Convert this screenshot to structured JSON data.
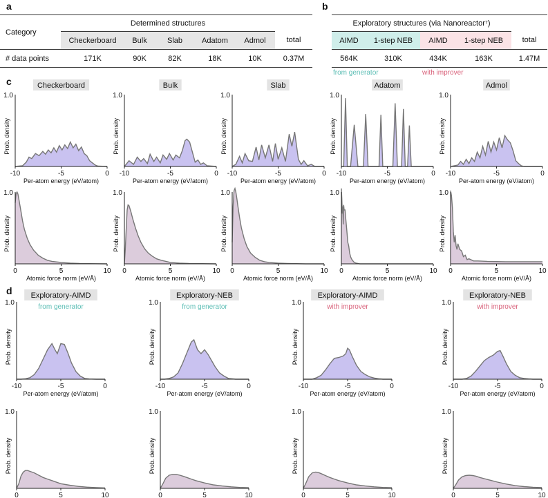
{
  "panels": {
    "a": "a",
    "b": "b",
    "c": "c",
    "d": "d"
  },
  "table_a": {
    "category_label": "Category",
    "group_title": "Determined structures",
    "columns": [
      "Checkerboard",
      "Bulk",
      "Slab",
      "Adatom",
      "Admol"
    ],
    "total_label": "total",
    "row_label": "# data points",
    "values": [
      "171K",
      "90K",
      "82K",
      "18K",
      "10K"
    ],
    "total": "0.37M"
  },
  "table_b": {
    "group_title": "Exploratory structures (via Nanoreactor⁷)",
    "columns": [
      "AIMD",
      "1-step NEB",
      "AIMD",
      "1-step NEB"
    ],
    "total_label": "total",
    "values": [
      "564K",
      "310K",
      "434K",
      "163K"
    ],
    "total": "1.47M",
    "from_generator": "from generator",
    "with_improver": "with improver"
  },
  "colors": {
    "energy_fill": "#c9c2f0",
    "force_fill": "#dcccdc",
    "line": "#777777",
    "teal": "#5bbdb4",
    "pink": "#d9627b"
  },
  "chart_data": [
    {
      "id": "c-energy-checkerboard",
      "type": "area",
      "title": "Checkerboard",
      "xlabel": "Per-atom energy (eV/atom)",
      "ylabel": "Prob. density",
      "xlim": [
        -10,
        0
      ],
      "ylim": [
        0,
        1
      ],
      "xticks": [
        "-10",
        "-5",
        "0"
      ],
      "ytick": "1.0",
      "x": [
        -10,
        -9.2,
        -8.8,
        -8.5,
        -8.2,
        -7.8,
        -7.4,
        -7,
        -6.7,
        -6.4,
        -6.1,
        -5.8,
        -5.5,
        -5.2,
        -4.9,
        -4.6,
        -4.3,
        -4,
        -3.7,
        -3.4,
        -3.1,
        -2.8,
        -2.5,
        -2.2,
        -1.9,
        -1.6,
        -1.3,
        -1,
        0
      ],
      "y": [
        0,
        0.01,
        0.06,
        0.13,
        0.11,
        0.18,
        0.15,
        0.21,
        0.17,
        0.23,
        0.19,
        0.26,
        0.2,
        0.29,
        0.23,
        0.3,
        0.25,
        0.34,
        0.26,
        0.31,
        0.22,
        0.27,
        0.18,
        0.15,
        0.08,
        0.05,
        0.02,
        0.005,
        0
      ]
    },
    {
      "id": "c-energy-bulk",
      "type": "area",
      "title": "Bulk",
      "xlabel": "Per-atom energy (eV/atom)",
      "ylabel": "Prob. density",
      "xlim": [
        -10,
        0
      ],
      "ylim": [
        0,
        1
      ],
      "xticks": [
        "-10",
        "-5",
        "0"
      ],
      "ytick": "1.0",
      "x": [
        -10,
        -9.5,
        -9,
        -8.6,
        -8.2,
        -7.9,
        -7.5,
        -7.2,
        -6.8,
        -6.5,
        -6.1,
        -5.8,
        -5.4,
        -5.1,
        -4.7,
        -4.4,
        -4,
        -3.7,
        -3.4,
        -3.2,
        -2.9,
        -2.6,
        -2.3,
        -2,
        -1.7,
        -1.4,
        -1,
        0
      ],
      "y": [
        0,
        0.08,
        0.03,
        0.13,
        0.07,
        0.11,
        0.04,
        0.17,
        0.07,
        0.13,
        0.05,
        0.16,
        0.1,
        0.18,
        0.09,
        0.16,
        0.12,
        0.22,
        0.36,
        0.38,
        0.34,
        0.2,
        0.06,
        0.09,
        0.03,
        0.05,
        0.01,
        0
      ]
    },
    {
      "id": "c-energy-slab",
      "type": "area",
      "title": "Slab",
      "xlabel": "Per-atom energy (eV/atom)",
      "ylabel": "Prob. density",
      "xlim": [
        -10,
        0
      ],
      "ylim": [
        0,
        1
      ],
      "xticks": [
        "-10",
        "-5",
        "0"
      ],
      "ytick": "1.0",
      "x": [
        -10,
        -9.6,
        -9.2,
        -8.9,
        -8.6,
        -8.2,
        -7.8,
        -7.4,
        -7.1,
        -6.8,
        -6.4,
        -6,
        -5.6,
        -5.3,
        -5,
        -4.6,
        -4.2,
        -3.8,
        -3.5,
        -3.2,
        -2.8,
        -2.5,
        -2.2,
        -1.8,
        -1.4,
        -1,
        0
      ],
      "y": [
        0,
        0.03,
        0.14,
        0.05,
        0.18,
        0.08,
        0.07,
        0.27,
        0.09,
        0.3,
        0.12,
        0.3,
        0.07,
        0.32,
        0.1,
        0.26,
        0.07,
        0.45,
        0.28,
        0.48,
        0.1,
        0.03,
        0.08,
        0.01,
        0.03,
        0,
        0
      ]
    },
    {
      "id": "c-energy-adatom",
      "type": "area",
      "title": "Adatom",
      "xlabel": "Per-atom energy (eV/atom)",
      "ylabel": "Prob. density",
      "xlim": [
        -10,
        0
      ],
      "ylim": [
        0,
        1
      ],
      "xticks": [
        "-10",
        "-5",
        "0"
      ],
      "ytick": "1.0",
      "x": [
        -10,
        -9.75,
        -9.55,
        -9.35,
        -9,
        -8.6,
        -8.2,
        -7.6,
        -7.35,
        -7.1,
        -6.4,
        -5.9,
        -5.7,
        -5.5,
        -5,
        -4.4,
        -4.15,
        -3.9,
        -3.45,
        -3.25,
        -3.05,
        -2.8,
        -2.6,
        -2.4,
        -2,
        0
      ],
      "y": [
        0,
        0,
        0.95,
        0,
        0,
        0.58,
        0,
        0,
        0.73,
        0,
        0,
        0,
        0.72,
        0,
        0,
        0,
        0.88,
        0,
        0,
        0.8,
        0,
        0,
        0.57,
        0,
        0,
        0
      ]
    },
    {
      "id": "c-energy-admol",
      "type": "area",
      "title": "Admol",
      "xlabel": "Per-atom energy (eV/atom)",
      "ylabel": "Prob. density",
      "xlim": [
        -10,
        0
      ],
      "ylim": [
        0,
        1
      ],
      "xticks": [
        "-10",
        "-5",
        "0"
      ],
      "ytick": "1.0",
      "x": [
        -10,
        -9.2,
        -8.9,
        -8.6,
        -8.3,
        -8,
        -7.7,
        -7.4,
        -7.1,
        -6.8,
        -6.5,
        -6.2,
        -5.9,
        -5.6,
        -5.3,
        -5,
        -4.7,
        -4.4,
        -4.1,
        -3.8,
        -3.5,
        -3.2,
        -2.9,
        -2.6,
        -2.3,
        -2,
        0
      ],
      "y": [
        0,
        0.02,
        0.07,
        0.03,
        0.1,
        0.04,
        0.12,
        0.07,
        0.2,
        0.12,
        0.28,
        0.16,
        0.35,
        0.2,
        0.34,
        0.23,
        0.4,
        0.26,
        0.43,
        0.37,
        0.33,
        0.22,
        0.08,
        0.04,
        0.01,
        0,
        0
      ]
    },
    {
      "id": "c-force-checkerboard",
      "type": "area",
      "xlabel": "Atomic force norm (eV/Å)",
      "ylabel": "Prob. density",
      "xlim": [
        0,
        10
      ],
      "ylim": [
        0,
        1
      ],
      "xticks": [
        "0",
        "5",
        "10"
      ],
      "ytick": "1.0",
      "x": [
        0,
        0.1,
        0.2,
        0.3,
        0.4,
        0.6,
        0.8,
        1,
        1.3,
        1.6,
        2,
        2.5,
        3,
        3.5,
        4,
        5,
        6,
        7,
        8,
        10
      ],
      "y": [
        0.85,
        0.98,
        1.0,
        0.97,
        0.9,
        0.75,
        0.6,
        0.48,
        0.36,
        0.27,
        0.19,
        0.12,
        0.08,
        0.05,
        0.035,
        0.02,
        0.01,
        0.005,
        0.003,
        0
      ]
    },
    {
      "id": "c-force-bulk",
      "type": "area",
      "xlabel": "Atomic force norm (eV/Å)",
      "ylabel": "Prob. density",
      "xlim": [
        0,
        10
      ],
      "ylim": [
        0,
        1
      ],
      "xticks": [
        "0",
        "5",
        "10"
      ],
      "ytick": "1.0",
      "x": [
        0,
        0.1,
        0.2,
        0.3,
        0.4,
        0.5,
        0.7,
        0.9,
        1.2,
        1.5,
        1.8,
        2.2,
        2.6,
        3,
        3.5,
        4,
        5,
        6,
        7,
        10
      ],
      "y": [
        0,
        0.2,
        0.5,
        0.75,
        0.82,
        0.81,
        0.73,
        0.63,
        0.5,
        0.39,
        0.3,
        0.21,
        0.15,
        0.11,
        0.07,
        0.05,
        0.02,
        0.01,
        0.005,
        0
      ]
    },
    {
      "id": "c-force-slab",
      "type": "area",
      "xlabel": "Atomic force norm (eV/Å)",
      "ylabel": "Prob. density",
      "xlim": [
        0,
        10
      ],
      "ylim": [
        0,
        1
      ],
      "xticks": [
        "0",
        "5",
        "10"
      ],
      "ytick": "1.0",
      "x": [
        0,
        0.1,
        0.2,
        0.3,
        0.4,
        0.5,
        0.6,
        0.8,
        1,
        1.3,
        1.6,
        2,
        2.5,
        3,
        3.5,
        4,
        5,
        6,
        8,
        10
      ],
      "y": [
        0.3,
        0.8,
        1.02,
        1.05,
        1.0,
        0.92,
        0.82,
        0.65,
        0.5,
        0.35,
        0.24,
        0.15,
        0.09,
        0.05,
        0.03,
        0.02,
        0.01,
        0.005,
        0,
        0
      ]
    },
    {
      "id": "c-force-adatom",
      "type": "area",
      "xlabel": "Atomic force norm (eV/Å)",
      "ylabel": "Prob. density",
      "xlim": [
        0,
        10
      ],
      "ylim": [
        0,
        1
      ],
      "xticks": [
        "0",
        "5",
        "10"
      ],
      "ytick": "1.0",
      "x": [
        0,
        0.05,
        0.1,
        0.15,
        0.2,
        0.25,
        0.3,
        0.4,
        0.5,
        0.6,
        0.7,
        0.8,
        0.9,
        1,
        1.1,
        1.2,
        1.4,
        1.6,
        2,
        10
      ],
      "y": [
        1.05,
        0.9,
        0.7,
        0.8,
        0.55,
        0.82,
        0.75,
        0.75,
        0.6,
        0.45,
        0.3,
        0.25,
        0.15,
        0.1,
        0.07,
        0.05,
        0.02,
        0.01,
        0,
        0
      ]
    },
    {
      "id": "c-force-admol",
      "type": "area",
      "xlabel": "Atomic force norm (eV/Å)",
      "ylabel": "Prob. density",
      "xlim": [
        0,
        10
      ],
      "ylim": [
        0,
        1
      ],
      "xticks": [
        "0",
        "5",
        "10"
      ],
      "ytick": "1.0",
      "x": [
        0,
        0.1,
        0.2,
        0.3,
        0.4,
        0.5,
        0.6,
        0.7,
        0.8,
        1,
        1.2,
        1.4,
        1.6,
        1.8,
        2,
        2.5,
        3,
        4,
        6,
        8,
        10
      ],
      "y": [
        1.02,
        0.95,
        0.78,
        0.45,
        0.3,
        0.4,
        0.25,
        0.2,
        0.28,
        0.2,
        0.18,
        0.1,
        0.12,
        0.06,
        0.07,
        0.04,
        0.04,
        0.035,
        0.03,
        0.03,
        0.03
      ]
    },
    {
      "id": "d-energy-aimd-gen",
      "type": "area",
      "title": "Exploratory-AIMD",
      "subtitle": "from generator",
      "xlabel": "Per-atom energy (eV/atom)",
      "ylabel": "Prob. density",
      "xlim": [
        -10,
        0
      ],
      "ylim": [
        0,
        1
      ],
      "xticks": [
        "-10",
        "-5",
        "0"
      ],
      "ytick": "1.0",
      "x": [
        -10,
        -9.5,
        -9,
        -8.5,
        -8,
        -7.5,
        -7,
        -6.5,
        -6,
        -5.7,
        -5.4,
        -5,
        -4.6,
        -4.2,
        -3.8,
        -3.3,
        -2.8,
        -2.3,
        -1.8,
        -1,
        0
      ],
      "y": [
        0,
        0,
        0.005,
        0.02,
        0.06,
        0.14,
        0.26,
        0.38,
        0.46,
        0.39,
        0.33,
        0.46,
        0.45,
        0.34,
        0.21,
        0.1,
        0.04,
        0.01,
        0.003,
        0,
        0
      ]
    },
    {
      "id": "d-energy-neb-gen",
      "type": "area",
      "title": "Exploratory-NEB",
      "subtitle": "from generator",
      "xlabel": "Per-atom energy (eV/atom)",
      "ylabel": "Prob. density",
      "xlim": [
        -10,
        0
      ],
      "ylim": [
        0,
        1
      ],
      "xticks": [
        "-10",
        "-5",
        "0"
      ],
      "ytick": "1.0",
      "x": [
        -10,
        -9.5,
        -9,
        -8.5,
        -8,
        -7.5,
        -7,
        -6.5,
        -6.2,
        -5.8,
        -5.4,
        -5,
        -4.6,
        -4.2,
        -3.8,
        -3.3,
        -2.8,
        -2.3,
        -1.5,
        0
      ],
      "y": [
        0,
        0,
        0.01,
        0.03,
        0.08,
        0.2,
        0.34,
        0.48,
        0.51,
        0.38,
        0.33,
        0.38,
        0.32,
        0.24,
        0.16,
        0.08,
        0.04,
        0.01,
        0,
        0
      ]
    },
    {
      "id": "d-energy-aimd-imp",
      "type": "area",
      "title": "Exploratory-AIMD",
      "subtitle": "with improver",
      "xlabel": "Per-atom energy (eV/atom)",
      "ylabel": "Prob. density",
      "xlim": [
        -10,
        0
      ],
      "ylim": [
        0,
        1
      ],
      "xticks": [
        "-10",
        "-5",
        "0"
      ],
      "ytick": "1.0",
      "x": [
        -10,
        -9,
        -8.5,
        -8,
        -7.5,
        -7,
        -6.5,
        -6,
        -5.5,
        -5.2,
        -5,
        -4.8,
        -4.5,
        -4,
        -3.5,
        -3,
        -2.5,
        -2,
        -1.5,
        -1,
        0
      ],
      "y": [
        0,
        0,
        0.02,
        0.05,
        0.12,
        0.2,
        0.27,
        0.28,
        0.3,
        0.33,
        0.4,
        0.38,
        0.3,
        0.18,
        0.1,
        0.06,
        0.03,
        0.015,
        0.005,
        0,
        0
      ]
    },
    {
      "id": "d-energy-neb-imp",
      "type": "area",
      "title": "Exploratory-NEB",
      "subtitle": "with improver",
      "xlabel": "Per-atom energy (eV/atom)",
      "ylabel": "Prob. density",
      "xlim": [
        -10,
        0
      ],
      "ylim": [
        0,
        1
      ],
      "xticks": [
        "-10",
        "-5",
        "0"
      ],
      "ytick": "1.0",
      "x": [
        -10,
        -9,
        -8.5,
        -8,
        -7.5,
        -7,
        -6.5,
        -6,
        -5.5,
        -5,
        -4.7,
        -4.4,
        -4,
        -3.5,
        -3,
        -2.5,
        -2,
        -1.5,
        -1,
        0
      ],
      "y": [
        0,
        0,
        0.01,
        0.04,
        0.1,
        0.17,
        0.24,
        0.28,
        0.31,
        0.36,
        0.37,
        0.3,
        0.2,
        0.1,
        0.05,
        0.02,
        0.01,
        0.004,
        0,
        0
      ]
    },
    {
      "id": "d-force-aimd-gen",
      "type": "area",
      "xlabel": "Atomic force norm (eV/Å)",
      "ylabel": "Prob. density",
      "xlim": [
        0,
        10
      ],
      "ylim": [
        0,
        1
      ],
      "xticks": [
        "0",
        "5",
        "10"
      ],
      "ytick": "1.0",
      "x": [
        0,
        0.25,
        0.5,
        0.75,
        1,
        1.25,
        1.5,
        2,
        2.5,
        3,
        3.5,
        4,
        5,
        6,
        7,
        8,
        9,
        10
      ],
      "y": [
        0,
        0.06,
        0.16,
        0.21,
        0.23,
        0.23,
        0.22,
        0.2,
        0.17,
        0.14,
        0.12,
        0.1,
        0.06,
        0.04,
        0.025,
        0.015,
        0.01,
        0.005
      ]
    },
    {
      "id": "d-force-neb-gen",
      "type": "area",
      "xlabel": "Atomic force norm (eV/Å)",
      "ylabel": "Prob. density",
      "xlim": [
        0,
        10
      ],
      "ylim": [
        0,
        1
      ],
      "xticks": [
        "0",
        "5",
        "10"
      ],
      "ytick": "1.0",
      "x": [
        0,
        0.3,
        0.6,
        1,
        1.4,
        1.8,
        2.2,
        2.6,
        3,
        3.5,
        4,
        5,
        6,
        7,
        8,
        9,
        10
      ],
      "y": [
        0,
        0.06,
        0.13,
        0.17,
        0.18,
        0.18,
        0.17,
        0.155,
        0.14,
        0.12,
        0.1,
        0.07,
        0.045,
        0.03,
        0.02,
        0.012,
        0.008
      ]
    },
    {
      "id": "d-force-aimd-imp",
      "type": "area",
      "xlabel": "Atomic force norm (eV/Å)",
      "ylabel": "Prob. density",
      "xlim": [
        0,
        10
      ],
      "ylim": [
        0,
        1
      ],
      "xticks": [
        "0",
        "5",
        "10"
      ],
      "ytick": "1.0",
      "x": [
        0,
        0.3,
        0.6,
        1,
        1.4,
        1.8,
        2.2,
        2.6,
        3,
        3.5,
        4,
        5,
        6,
        7,
        8,
        9,
        10
      ],
      "y": [
        0,
        0.07,
        0.15,
        0.2,
        0.21,
        0.2,
        0.18,
        0.16,
        0.14,
        0.12,
        0.1,
        0.07,
        0.045,
        0.03,
        0.02,
        0.012,
        0.008
      ]
    },
    {
      "id": "d-force-neb-imp",
      "type": "area",
      "xlabel": "Atomic force norm (eV/Å)",
      "ylabel": "Prob. density",
      "xlim": [
        0,
        10
      ],
      "ylim": [
        0,
        1
      ],
      "xticks": [
        "0",
        "5",
        "10"
      ],
      "ytick": "1.0",
      "x": [
        0,
        0.3,
        0.6,
        1,
        1.4,
        1.8,
        2.2,
        2.6,
        3,
        3.5,
        4,
        5,
        6,
        7,
        8,
        9,
        10
      ],
      "y": [
        0,
        0.05,
        0.11,
        0.15,
        0.165,
        0.17,
        0.165,
        0.155,
        0.14,
        0.125,
        0.11,
        0.08,
        0.055,
        0.035,
        0.022,
        0.014,
        0.01
      ]
    }
  ]
}
